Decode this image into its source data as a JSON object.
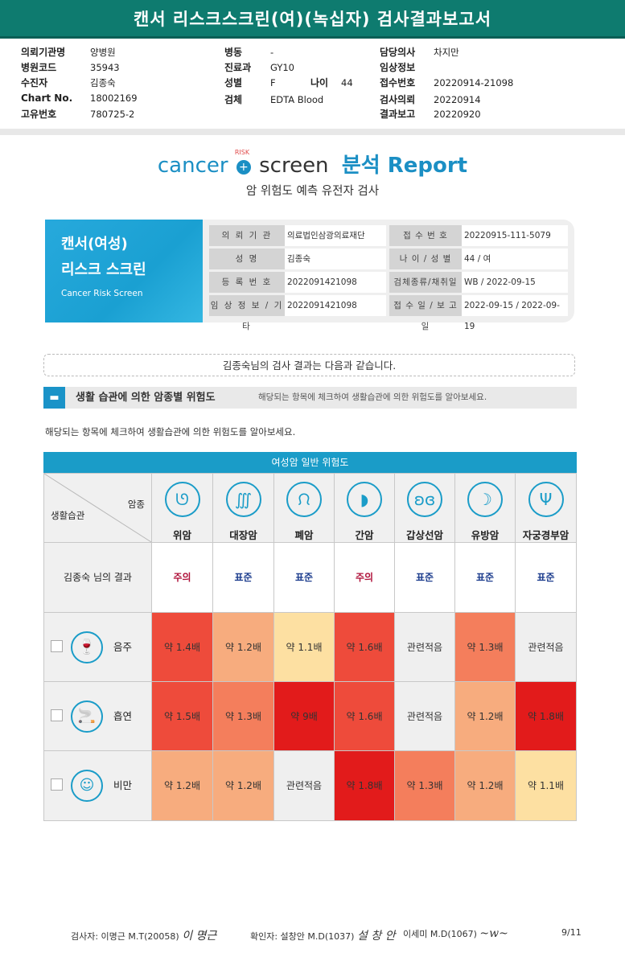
{
  "header": {
    "title": "캔서 리스크스크린(여)(녹십자) 검사결과보고서",
    "col1": [
      {
        "label": "의뢰기관명",
        "value": "양병원"
      },
      {
        "label": "병원코드",
        "value": "35943"
      },
      {
        "label": "수진자",
        "value": "김종숙"
      },
      {
        "label": "Chart No.",
        "value": "18002169"
      },
      {
        "label": "고유번호",
        "value": "780725-2"
      }
    ],
    "col2": [
      {
        "label": "병동",
        "value": "-"
      },
      {
        "label": "진료과",
        "value": "GY10"
      },
      {
        "label": "성별",
        "value": "F"
      },
      {
        "label": "검체",
        "value": "EDTA Blood"
      }
    ],
    "age": {
      "label": "나이",
      "value": "44"
    },
    "col3": [
      {
        "label": "담당의사",
        "value": "차지만"
      },
      {
        "label": "임상정보",
        "value": ""
      },
      {
        "label": "접수번호",
        "value": "20220914-21098"
      },
      {
        "label": "검사의뢰",
        "value": "20220914"
      },
      {
        "label": "결과보고",
        "value": "20220920"
      }
    ]
  },
  "logo": {
    "part1": "cancer",
    "risk": "RISK",
    "part2": "screen",
    "part3": "분석 Report"
  },
  "subtitle": "암 위험도 예측 유전자 검사",
  "card": {
    "title1": "캔서(여성)",
    "title2": "리스크 스크린",
    "title3": "Cancer Risk Screen",
    "rows": [
      {
        "k1": "의 뢰 기 관",
        "v1": "의료법인삼광의료재단",
        "k2": "접 수 번 호",
        "v2": "20220915-111-5079"
      },
      {
        "k1": "성 명",
        "v1": "김종숙",
        "k2": "나 이 / 성 별",
        "v2": "44 / 여"
      },
      {
        "k1": "등 록 번 호",
        "v1": "2022091421098",
        "k2": "검체종류/채취일",
        "v2": "WB / 2022-09-15"
      },
      {
        "k1": "임 상 정 보 / 기 타",
        "v1": "2022091421098",
        "k2": "접 수 일 / 보 고 일",
        "v2": "2022-09-15 / 2022-09-19"
      }
    ]
  },
  "banner": "김종숙님의 검사 결과는 다음과 같습니다.",
  "section": {
    "title": "생활 습관에 의한 암종별 위험도",
    "desc": "해당되는 항목에 체크하여 생활습관에 의한 위험도를 알아보세요."
  },
  "note": "해당되는 항목에 체크하여 생활습관에 의한 위험도를 알아보세요.",
  "table": {
    "title": "여성암 일반 위험도",
    "corner_top": "암종",
    "corner_bottom": "생활습관",
    "cancers": [
      {
        "name": "위암",
        "icon": "stomach-icon",
        "glyph": "ᘎ"
      },
      {
        "name": "대장암",
        "icon": "colon-icon",
        "glyph": "∭"
      },
      {
        "name": "폐암",
        "icon": "lung-icon",
        "glyph": "ᙁ"
      },
      {
        "name": "간암",
        "icon": "liver-icon",
        "glyph": "◗"
      },
      {
        "name": "갑상선암",
        "icon": "thyroid-icon",
        "glyph": "ʚɞ"
      },
      {
        "name": "유방암",
        "icon": "breast-icon",
        "glyph": "☽"
      },
      {
        "name": "자궁경부암",
        "icon": "uterus-icon",
        "glyph": "Ψ"
      }
    ],
    "result_label": "김종숙 님의 결과",
    "results": [
      "주의",
      "표준",
      "표준",
      "주의",
      "표준",
      "표준",
      "표준"
    ],
    "colors": {
      "caution": "#b0143c",
      "standard": "#1f3f8f"
    },
    "rows": [
      {
        "name": "음주",
        "icon": "alcohol-icon",
        "glyph": "🍷",
        "values": [
          "약 1.4배",
          "약 1.2배",
          "약 1.1배",
          "약 1.6배",
          "관련적음",
          "약 1.3배",
          "관련적음"
        ],
        "fills": [
          "#ee4b3b",
          "#f7ac7e",
          "#fde0a2",
          "#ee4b3b",
          "#efefef",
          "#f47e5c",
          "#efefef"
        ]
      },
      {
        "name": "흡연",
        "icon": "cigarette-icon",
        "glyph": "🚬",
        "values": [
          "약 1.5배",
          "약 1.3배",
          "약 9배",
          "약 1.6배",
          "관련적음",
          "약 1.2배",
          "약 1.8배"
        ],
        "fills": [
          "#ee4b3b",
          "#f47e5c",
          "#e21b1b",
          "#ee4b3b",
          "#efefef",
          "#f7ac7e",
          "#e21b1b"
        ]
      },
      {
        "name": "비만",
        "icon": "obesity-icon",
        "glyph": "☺",
        "values": [
          "약 1.2배",
          "약 1.2배",
          "관련적음",
          "약 1.8배",
          "약 1.3배",
          "약 1.2배",
          "약 1.1배"
        ],
        "fills": [
          "#f7ac7e",
          "#f7ac7e",
          "#efefef",
          "#e21b1b",
          "#f47e5c",
          "#f7ac7e",
          "#fde0a2"
        ]
      }
    ]
  },
  "footer": {
    "examiner": "검사자: 이명근 M.T(20058)",
    "examiner_sig": "이 명근",
    "confirmer": "확인자: 설창안 M.D(1037)",
    "confirmer_sig": "설 창 안",
    "second": "이세미 M.D(1067)",
    "second_sig": "~w~",
    "page": "9/11"
  }
}
